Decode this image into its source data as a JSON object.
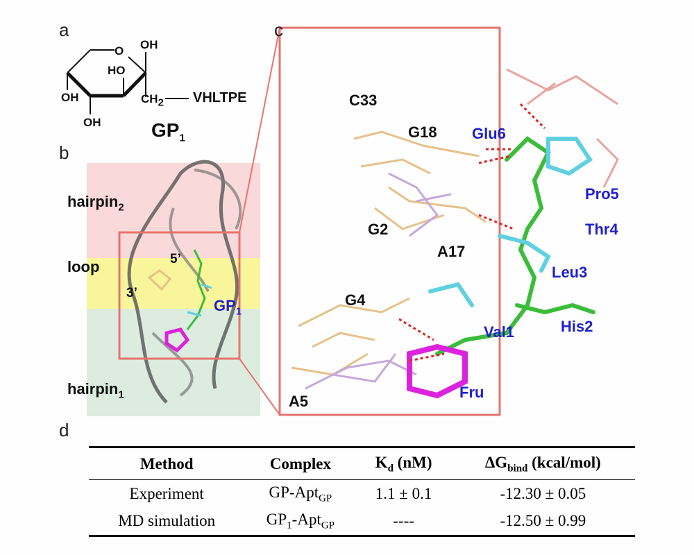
{
  "panels": {
    "a": "a",
    "b": "b",
    "c": "c",
    "d": "d"
  },
  "structure": {
    "oh_top": "OH",
    "ho": "HO",
    "oh_left": "OH",
    "oh_bottom": "OH",
    "o_ring": "O",
    "ch2": "CH",
    "ch2_sub": "2",
    "peptide": "VHLTPE",
    "name": "GP",
    "name_sub": "1"
  },
  "panel_b": {
    "hairpin2": "hairpin",
    "hairpin2_sub": "2",
    "loop": "loop",
    "hairpin1": "hairpin",
    "hairpin1_sub": "1",
    "five_prime": "5’",
    "three_prime": "3’",
    "gp": "GP",
    "gp_sub": "1",
    "colors": {
      "hairpin2": "#f9d9d9",
      "loop": "#f9f59a",
      "hairpin1": "#dcecdf"
    }
  },
  "panel_c": {
    "labels_black": [
      "C33",
      "G18",
      "G2",
      "A17",
      "G4",
      "A5"
    ],
    "labels_blue": [
      "Glu6",
      "Pro5",
      "Thr4",
      "Leu3",
      "Val1",
      "His2",
      "Fru"
    ],
    "box_color": "#e8736e"
  },
  "table": {
    "headers": {
      "method": "Method",
      "complex": "Complex",
      "kd": "K",
      "kd_sub": "d",
      "kd_unit": " (nM)",
      "dg": "ΔG",
      "dg_sub": "bind",
      "dg_unit": " (kcal/mol)"
    },
    "rows": [
      {
        "method": "Experiment",
        "complex": "GP-Apt",
        "complex_sub": "GP",
        "kd": "1.1 ± 0.1",
        "dg": "-12.30 ± 0.05"
      },
      {
        "method": "MD simulation",
        "complex": "GP",
        "complex_sub1": "1",
        "complex2": "-Apt",
        "complex_sub": "GP",
        "kd": "----",
        "dg": "-12.50 ± 0.99"
      }
    ]
  }
}
